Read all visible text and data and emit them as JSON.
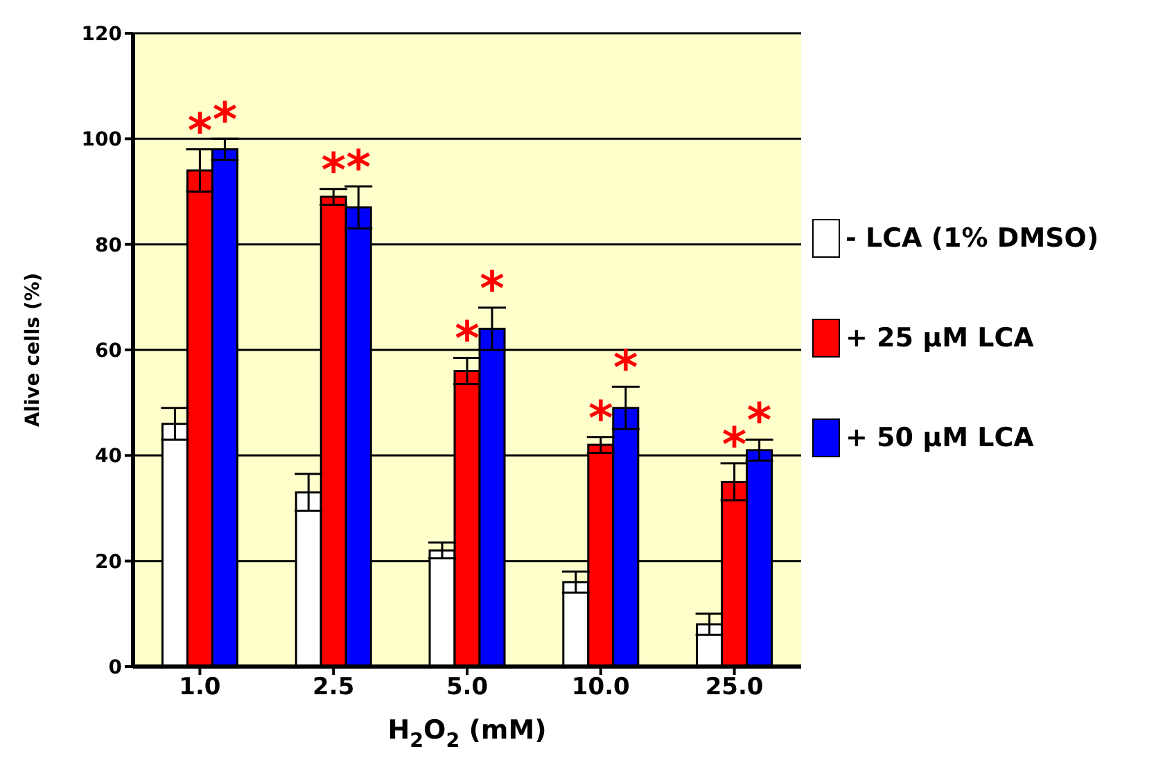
{
  "chart_data": {
    "type": "bar",
    "xlabel": "H$_{2}$O$_{2}$ (mM)",
    "ylabel": "Alive cells (%)",
    "categories": [
      "1.0",
      "2.5",
      "5.0",
      "10.0",
      "25.0"
    ],
    "series": [
      {
        "name": "- LCA (1% DMSO)",
        "color": "#ffffff",
        "values": [
          46,
          33,
          22,
          16,
          8
        ],
        "errors": [
          3,
          3.5,
          1.5,
          2,
          2
        ]
      },
      {
        "name": "+ 25 μM LCA",
        "color": "#ff0000",
        "values": [
          94,
          89,
          56,
          42,
          35
        ],
        "errors": [
          4,
          1.5,
          2.5,
          1.5,
          3.5
        ]
      },
      {
        "name": "+ 50 μM LCA",
        "color": "#0000ff",
        "values": [
          98,
          87,
          64,
          49,
          41
        ],
        "errors": [
          2,
          4,
          4,
          4,
          2
        ]
      }
    ],
    "ylim": [
      0,
      120
    ],
    "yticks": [
      0,
      20,
      40,
      60,
      80,
      100,
      120
    ],
    "grid": "y",
    "legend": "right",
    "annotations": [
      "*",
      "*",
      "*",
      "*",
      "*",
      "*",
      "*",
      "*",
      "*",
      "*"
    ]
  }
}
